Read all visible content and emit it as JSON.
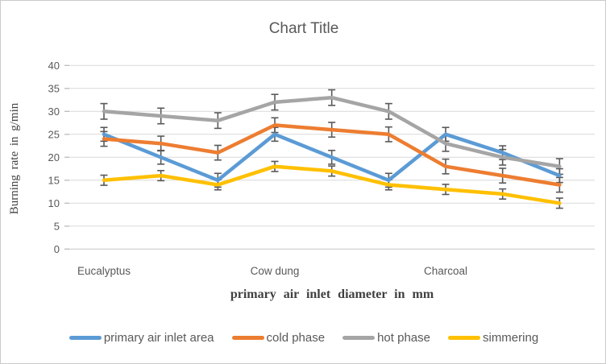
{
  "window": {
    "background": "#ffffff",
    "border_color": "#cbcbcb"
  },
  "chart_data": {
    "type": "line",
    "title": "Chart Title",
    "xlabel": "primary air inlet diameter in mm",
    "ylabel": "Burning rate in g/min",
    "ylim": [
      0,
      40
    ],
    "yticks": [
      0,
      5,
      10,
      15,
      20,
      25,
      30,
      35,
      40
    ],
    "grid": true,
    "legend_position": "bottom",
    "categories": [
      "Eucalyptus",
      "",
      "",
      "Cow dung",
      "",
      "",
      "Charcoal",
      "",
      ""
    ],
    "series": [
      {
        "name": "primary air inlet area",
        "color": "#5B9BD5",
        "values": [
          25,
          20,
          15,
          25,
          20,
          15,
          25,
          21,
          16
        ],
        "error": 1.5
      },
      {
        "name": "cold phase",
        "color": "#ED7D31",
        "values": [
          24,
          23,
          21,
          27,
          26,
          25,
          18,
          16,
          14
        ],
        "error": 1.6
      },
      {
        "name": "hot phase",
        "color": "#A5A5A5",
        "values": [
          30,
          29,
          28,
          32,
          33,
          30,
          23,
          20,
          18
        ],
        "error": 1.7
      },
      {
        "name": "simmering",
        "color": "#FFC000",
        "values": [
          15,
          16,
          14,
          18,
          17,
          14,
          13,
          12,
          10
        ],
        "error": 1.1
      }
    ],
    "colors": {
      "gridline": "#D9D9D9",
      "baseline": "#C6C6C6",
      "tick": "#BFBFBF",
      "error_bar": "#595959",
      "text": "#595959"
    }
  }
}
